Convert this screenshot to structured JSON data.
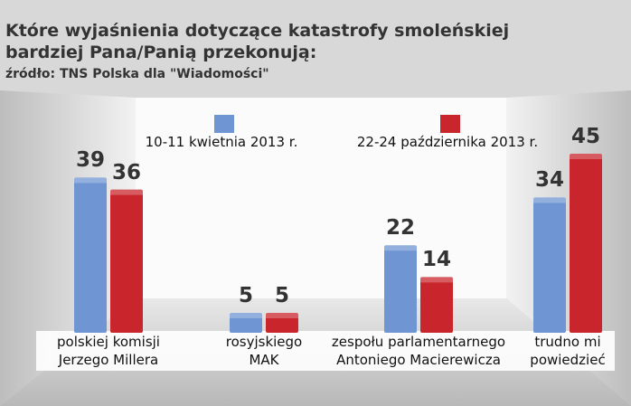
{
  "chart_data": {
    "type": "bar",
    "title": "Które wyjaśnienia dotyczące katastrofy smoleńskiej bardziej Pana/Panią przekonują:",
    "subtitle": "źródło: TNS Polska dla \"Wiadomości\"",
    "categories": [
      "polskiej komisji\nJerzego Millera",
      "rosyjskiego\nMAK",
      "zespołu parlamentarnego\nAntoniego Macierewicza",
      "trudno mi\npowiedzieć"
    ],
    "series": [
      {
        "name": "10-11 kwietnia 2013 r.",
        "color": "#6f95d2",
        "values": [
          39,
          5,
          22,
          34
        ]
      },
      {
        "name": "22-24 października 2013 r.",
        "color": "#c8262c",
        "values": [
          36,
          5,
          14,
          45
        ]
      }
    ]
  }
}
